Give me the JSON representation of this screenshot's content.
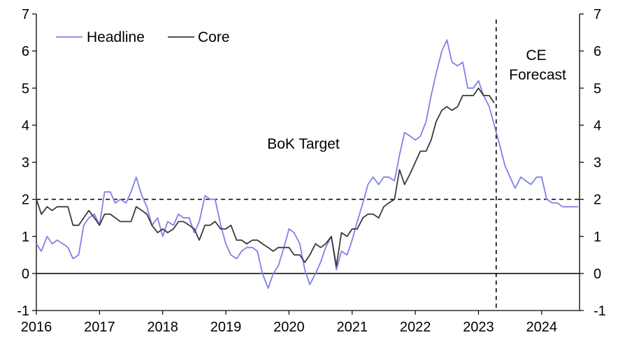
{
  "chart_data": {
    "type": "line",
    "title": "",
    "xlabel": "",
    "ylabel": "",
    "xlim": [
      2016.0,
      2024.6
    ],
    "ylim": [
      -1,
      7
    ],
    "x_ticks": [
      "2016",
      "2017",
      "2018",
      "2019",
      "2020",
      "2021",
      "2022",
      "2023",
      "2024"
    ],
    "y_ticks_left": [
      "-1",
      "0",
      "1",
      "2",
      "3",
      "4",
      "5",
      "6",
      "7"
    ],
    "y_ticks_right": [
      "-1",
      "0",
      "1",
      "2",
      "3",
      "4",
      "5",
      "6",
      "7"
    ],
    "grid": false,
    "legend": {
      "position": "top-left",
      "entries": [
        "Headline",
        "Core"
      ]
    },
    "colors": {
      "headline": "#8080e8",
      "core": "#3a3a3a",
      "reference": "#000000"
    },
    "annotations": {
      "target_label": "BoK Target",
      "target_value": 2,
      "forecast_label_line1": "CE",
      "forecast_label_line2": "Forecast",
      "forecast_start": 2023.28
    },
    "series": [
      {
        "name": "Headline",
        "x": [
          2016.0,
          2016.08,
          2016.17,
          2016.25,
          2016.33,
          2016.42,
          2016.5,
          2016.58,
          2016.67,
          2016.75,
          2016.83,
          2016.92,
          2017.0,
          2017.08,
          2017.17,
          2017.25,
          2017.33,
          2017.42,
          2017.5,
          2017.58,
          2017.67,
          2017.75,
          2017.83,
          2017.92,
          2018.0,
          2018.08,
          2018.17,
          2018.25,
          2018.33,
          2018.42,
          2018.5,
          2018.58,
          2018.67,
          2018.75,
          2018.83,
          2018.92,
          2019.0,
          2019.08,
          2019.17,
          2019.25,
          2019.33,
          2019.42,
          2019.5,
          2019.58,
          2019.67,
          2019.75,
          2019.83,
          2019.92,
          2020.0,
          2020.08,
          2020.17,
          2020.25,
          2020.33,
          2020.42,
          2020.5,
          2020.58,
          2020.67,
          2020.75,
          2020.83,
          2020.92,
          2021.0,
          2021.08,
          2021.17,
          2021.25,
          2021.33,
          2021.42,
          2021.5,
          2021.58,
          2021.67,
          2021.75,
          2021.83,
          2021.92,
          2022.0,
          2022.08,
          2022.17,
          2022.25,
          2022.33,
          2022.42,
          2022.5,
          2022.58,
          2022.67,
          2022.75,
          2022.83,
          2022.92,
          2023.0,
          2023.08,
          2023.17,
          2023.25,
          2023.33,
          2023.42,
          2023.5,
          2023.58,
          2023.67,
          2023.75,
          2023.83,
          2023.92,
          2024.0,
          2024.08,
          2024.17,
          2024.25,
          2024.33,
          2024.42,
          2024.5,
          2024.58
        ],
        "values": [
          0.8,
          0.6,
          1.0,
          0.8,
          0.9,
          0.8,
          0.7,
          0.4,
          0.5,
          1.3,
          1.5,
          1.6,
          1.3,
          2.2,
          2.2,
          1.9,
          2.0,
          1.9,
          2.2,
          2.6,
          2.1,
          1.8,
          1.3,
          1.5,
          1.0,
          1.4,
          1.3,
          1.6,
          1.5,
          1.5,
          1.1,
          1.4,
          2.1,
          2.0,
          2.0,
          1.3,
          0.8,
          0.5,
          0.4,
          0.6,
          0.7,
          0.7,
          0.6,
          0.0,
          -0.4,
          0.0,
          0.2,
          0.7,
          1.2,
          1.1,
          0.8,
          0.1,
          -0.3,
          0.0,
          0.3,
          0.7,
          1.0,
          0.1,
          0.6,
          0.5,
          0.9,
          1.4,
          1.9,
          2.4,
          2.6,
          2.4,
          2.6,
          2.6,
          2.5,
          3.2,
          3.8,
          3.7,
          3.6,
          3.7,
          4.1,
          4.8,
          5.4,
          6.0,
          6.3,
          5.7,
          5.6,
          5.7,
          5.0,
          5.0,
          5.2,
          4.8,
          4.5,
          4.0,
          3.5,
          2.9,
          2.6,
          2.3,
          2.6,
          2.5,
          2.4,
          2.6,
          2.6,
          2.0,
          1.9,
          1.9,
          1.8,
          1.8,
          1.8,
          1.8
        ]
      },
      {
        "name": "Core",
        "x": [
          2016.0,
          2016.08,
          2016.17,
          2016.25,
          2016.33,
          2016.42,
          2016.5,
          2016.58,
          2016.67,
          2016.75,
          2016.83,
          2016.92,
          2017.0,
          2017.08,
          2017.17,
          2017.25,
          2017.33,
          2017.42,
          2017.5,
          2017.58,
          2017.67,
          2017.75,
          2017.83,
          2017.92,
          2018.0,
          2018.08,
          2018.17,
          2018.25,
          2018.33,
          2018.42,
          2018.5,
          2018.58,
          2018.67,
          2018.75,
          2018.83,
          2018.92,
          2019.0,
          2019.08,
          2019.17,
          2019.25,
          2019.33,
          2019.42,
          2019.5,
          2019.58,
          2019.67,
          2019.75,
          2019.83,
          2019.92,
          2020.0,
          2020.08,
          2020.17,
          2020.25,
          2020.33,
          2020.42,
          2020.5,
          2020.58,
          2020.67,
          2020.75,
          2020.83,
          2020.92,
          2021.0,
          2021.08,
          2021.17,
          2021.25,
          2021.33,
          2021.42,
          2021.5,
          2021.58,
          2021.67,
          2021.75,
          2021.83,
          2021.92,
          2022.0,
          2022.08,
          2022.17,
          2022.25,
          2022.33,
          2022.42,
          2022.5,
          2022.58,
          2022.67,
          2022.75,
          2022.83,
          2022.92,
          2023.0,
          2023.08,
          2023.17,
          2023.25
        ],
        "values": [
          2.0,
          1.6,
          1.8,
          1.7,
          1.8,
          1.8,
          1.8,
          1.3,
          1.3,
          1.5,
          1.7,
          1.5,
          1.3,
          1.6,
          1.6,
          1.5,
          1.4,
          1.4,
          1.4,
          1.8,
          1.7,
          1.6,
          1.3,
          1.1,
          1.2,
          1.1,
          1.2,
          1.4,
          1.4,
          1.3,
          1.2,
          0.9,
          1.3,
          1.3,
          1.4,
          1.2,
          1.2,
          1.3,
          0.9,
          0.9,
          0.8,
          0.9,
          0.9,
          0.8,
          0.7,
          0.6,
          0.7,
          0.7,
          0.7,
          0.5,
          0.5,
          0.3,
          0.5,
          0.8,
          0.7,
          0.8,
          1.0,
          0.2,
          1.1,
          1.0,
          1.2,
          1.2,
          1.5,
          1.6,
          1.6,
          1.5,
          1.8,
          1.9,
          2.0,
          2.8,
          2.4,
          2.7,
          3.0,
          3.3,
          3.3,
          3.6,
          4.1,
          4.4,
          4.5,
          4.4,
          4.5,
          4.8,
          4.8,
          4.8,
          5.0,
          4.8,
          4.8,
          4.6
        ]
      }
    ]
  }
}
